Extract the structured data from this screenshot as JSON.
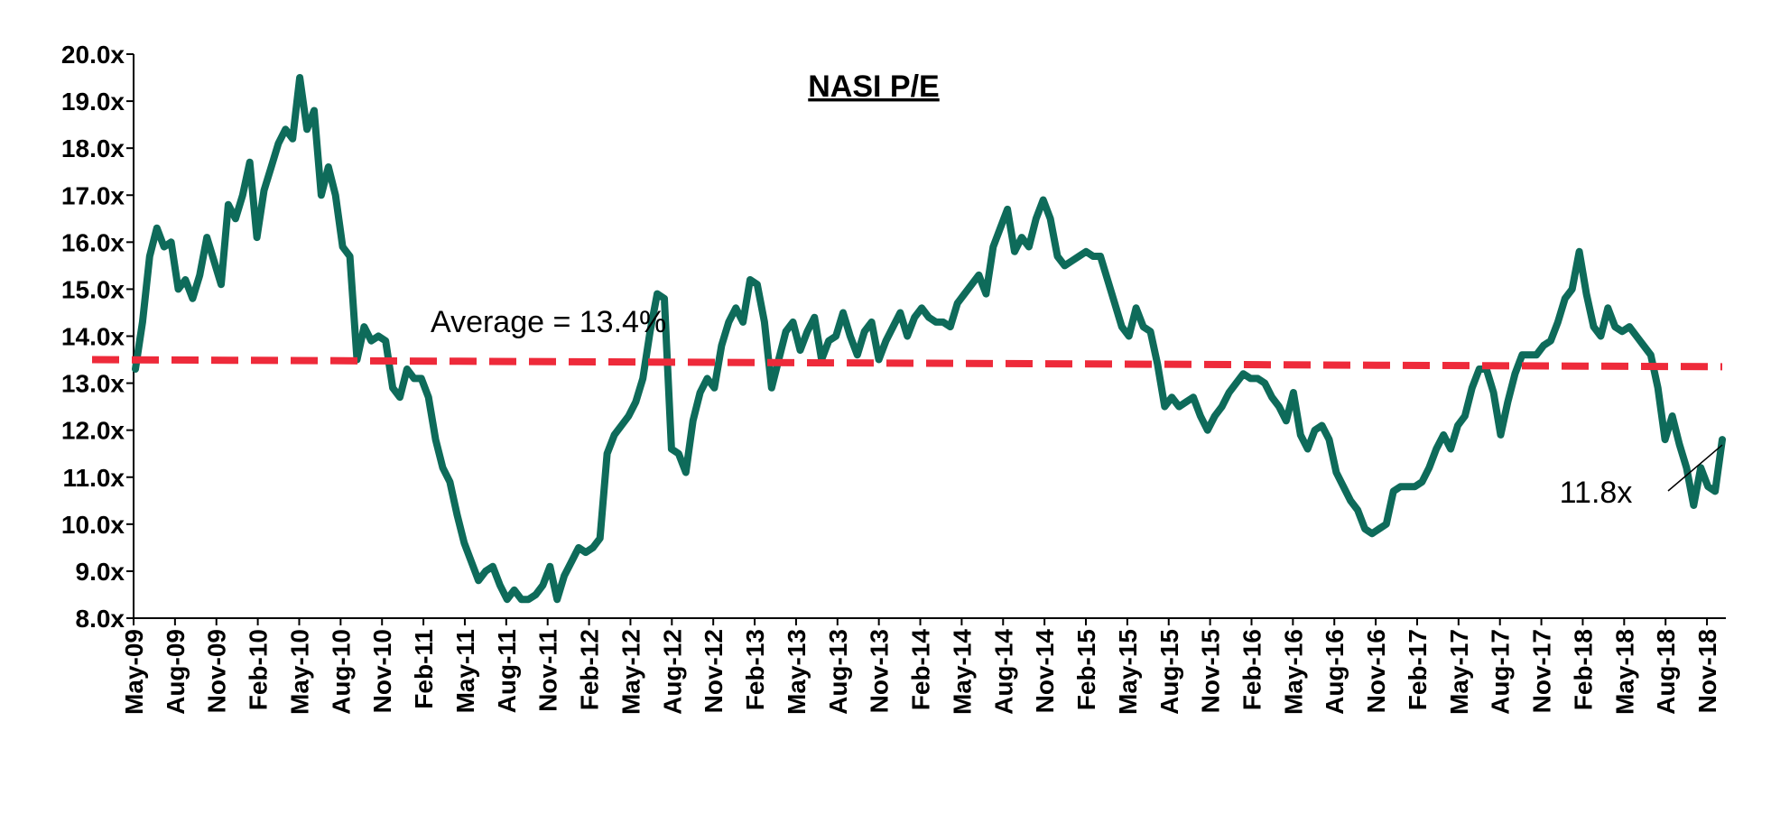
{
  "chart_data": {
    "type": "line",
    "title": "NASI P/E",
    "xlabel": "",
    "ylabel": "",
    "ylim": [
      8.0,
      20.0
    ],
    "y_ticks": [
      "8.0x",
      "9.0x",
      "10.0x",
      "11.0x",
      "12.0x",
      "13.0x",
      "14.0x",
      "15.0x",
      "16.0x",
      "17.0x",
      "18.0x",
      "19.0x",
      "20.0x"
    ],
    "x_ticks": [
      "May-09",
      "Aug-09",
      "Nov-09",
      "Feb-10",
      "May-10",
      "Aug-10",
      "Nov-10",
      "Feb-11",
      "May-11",
      "Aug-11",
      "Nov-11",
      "Feb-12",
      "May-12",
      "Aug-12",
      "Nov-12",
      "Feb-13",
      "May-13",
      "Aug-13",
      "Nov-13",
      "Feb-14",
      "May-14",
      "Aug-14",
      "Nov-14",
      "Feb-15",
      "May-15",
      "Aug-15",
      "Nov-15",
      "Feb-16",
      "May-16",
      "Aug-16",
      "Nov-16",
      "Feb-17",
      "May-17",
      "Aug-17",
      "Nov-17",
      "Feb-18",
      "May-18",
      "Aug-18",
      "Nov-18"
    ],
    "grid": false,
    "legend": "none",
    "series": [
      {
        "name": "",
        "color": "#0e6b5a",
        "values": [
          13.3,
          14.3,
          15.7,
          16.3,
          15.9,
          16.0,
          15.0,
          15.2,
          14.8,
          15.3,
          16.1,
          15.6,
          15.1,
          16.8,
          16.5,
          17.0,
          17.7,
          16.1,
          17.1,
          17.6,
          18.1,
          18.4,
          18.2,
          19.5,
          18.4,
          18.8,
          17.0,
          17.6,
          17.0,
          15.9,
          15.7,
          13.5,
          14.2,
          13.9,
          14.0,
          13.9,
          12.9,
          12.7,
          13.3,
          13.1,
          13.1,
          12.7,
          11.8,
          11.2,
          10.9,
          10.2,
          9.6,
          9.2,
          8.8,
          9.0,
          9.1,
          8.7,
          8.4,
          8.6,
          8.4,
          8.4,
          8.5,
          8.7,
          9.1,
          8.4,
          8.9,
          9.2,
          9.5,
          9.4,
          9.5,
          9.7,
          11.5,
          11.9,
          12.1,
          12.3,
          12.6,
          13.1,
          14.1,
          14.9,
          14.8,
          11.6,
          11.5,
          11.1,
          12.2,
          12.8,
          13.1,
          12.9,
          13.8,
          14.3,
          14.6,
          14.3,
          15.2,
          15.1,
          14.3,
          12.9,
          13.5,
          14.1,
          14.3,
          13.7,
          14.1,
          14.4,
          13.5,
          13.9,
          14.0,
          14.5,
          14.0,
          13.6,
          14.1,
          14.3,
          13.5,
          13.9,
          14.2,
          14.5,
          14.0,
          14.4,
          14.6,
          14.4,
          14.3,
          14.3,
          14.2,
          14.7,
          14.9,
          15.1,
          15.3,
          14.9,
          15.9,
          16.3,
          16.7,
          15.8,
          16.1,
          15.9,
          16.5,
          16.9,
          16.5,
          15.7,
          15.5,
          15.6,
          15.7,
          15.8,
          15.7,
          15.7,
          15.2,
          14.7,
          14.2,
          14.0,
          14.6,
          14.2,
          14.1,
          13.4,
          12.5,
          12.7,
          12.5,
          12.6,
          12.7,
          12.3,
          12.0,
          12.3,
          12.5,
          12.8,
          13.0,
          13.2,
          13.1,
          13.1,
          13.0,
          12.7,
          12.5,
          12.2,
          12.8,
          11.9,
          11.6,
          12.0,
          12.1,
          11.8,
          11.1,
          10.8,
          10.5,
          10.3,
          9.9,
          9.8,
          9.9,
          10.0,
          10.7,
          10.8,
          10.8,
          10.8,
          10.9,
          11.2,
          11.6,
          11.9,
          11.6,
          12.1,
          12.3,
          12.9,
          13.3,
          13.3,
          12.8,
          11.9,
          12.6,
          13.2,
          13.6,
          13.6,
          13.6,
          13.8,
          13.9,
          14.3,
          14.8,
          15.0,
          15.8,
          14.9,
          14.2,
          14.0,
          14.6,
          14.2,
          14.1,
          14.2,
          14.0,
          13.8,
          13.6,
          12.9,
          11.8,
          12.3,
          11.7,
          11.2,
          10.4,
          11.2,
          10.8,
          10.7,
          11.8
        ]
      },
      {
        "name": "Average",
        "color": "#ee2a3a",
        "style": "dashed",
        "values": [
          13.5,
          13.35
        ]
      }
    ],
    "annotations": {
      "average_label": "Average = 13.4%",
      "last_value_label": "11.8x"
    }
  }
}
